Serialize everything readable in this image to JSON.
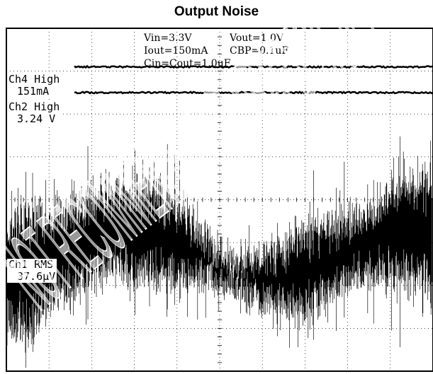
{
  "chart_data": {
    "type": "oscilloscope",
    "title": "Output Noise",
    "conditions": [
      "Vin=3.3V",
      "Vout=1.0V",
      "Iout=150mA",
      "CBP=0.1uF",
      "Cin=Cout=1.0uF"
    ],
    "grid": true,
    "divisions": {
      "x": 10,
      "y": 8
    },
    "traces": [
      {
        "channel": "Ch4",
        "measurement": "High",
        "value": "151mA",
        "level_div": 3.1,
        "style": "flat"
      },
      {
        "channel": "Ch2",
        "measurement": "High",
        "value": "3.24 V",
        "level_div": 2.5,
        "style": "flat"
      },
      {
        "channel": "Ch1",
        "measurement": "RMS",
        "value": "37.6µV",
        "level_div": -1.3,
        "style": "noise",
        "amplitude_div": 2.2
      }
    ],
    "watermark": "NOT RECOMMENDED FOR NEW DESIGNS"
  }
}
